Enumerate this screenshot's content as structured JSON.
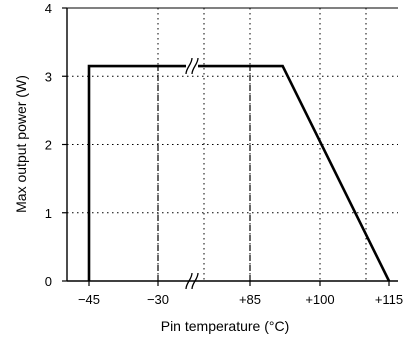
{
  "chart_data": {
    "type": "line",
    "xlabel": "Pin temperature (°C)",
    "ylabel": "Max output power (W)",
    "x_ticks": [
      {
        "value": -45,
        "label": "−45"
      },
      {
        "value": -30,
        "label": "−30"
      },
      {
        "value": 85,
        "label": "+85"
      },
      {
        "value": 100,
        "label": "+100"
      },
      {
        "value": 115,
        "label": "+115"
      }
    ],
    "y_ticks": [
      {
        "value": 0,
        "label": "0"
      },
      {
        "value": 1,
        "label": "1"
      },
      {
        "value": 2,
        "label": "2"
      },
      {
        "value": 3,
        "label": "3"
      },
      {
        "value": 4,
        "label": "4"
      }
    ],
    "ylim": [
      0,
      4
    ],
    "grid": true,
    "axis_break_between": [
      -30,
      85
    ],
    "series": [
      {
        "values": [
          {
            "x": -45,
            "y": 0
          },
          {
            "x": -45,
            "y": 3.15
          },
          {
            "x": 92,
            "y": 3.15
          },
          {
            "x": 115,
            "y": 0
          }
        ]
      }
    ],
    "reference_lines": [
      {
        "x": -30,
        "y_from": 0,
        "y_to": 3.15,
        "style": "dashed"
      },
      {
        "x": 85,
        "y_from": 0,
        "y_to": 3.15,
        "style": "dashed"
      }
    ],
    "colors": {
      "line": "#000000",
      "grid": "#000000",
      "background": "#ffffff"
    }
  }
}
